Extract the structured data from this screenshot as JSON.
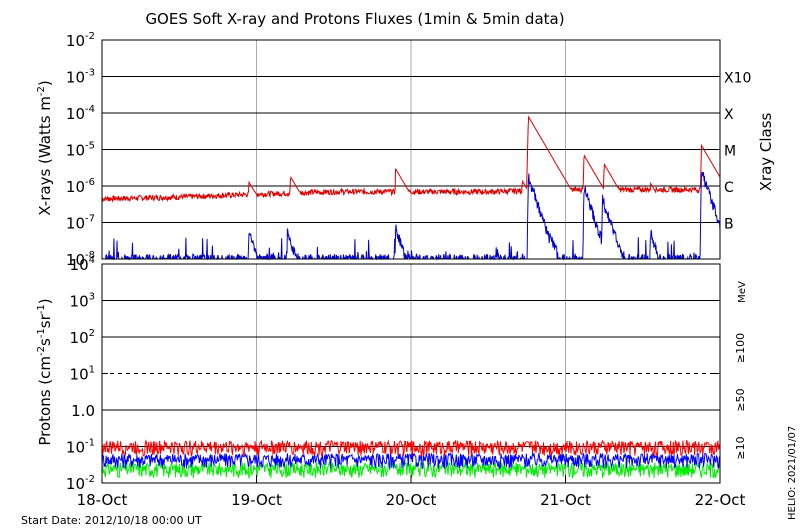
{
  "title": "GOES Soft X-ray and Protons Fluxes   (1min & 5min data)",
  "start_date": "Start Date: 2012/10/18 00:00 UT",
  "credit": "HELIO: 2021/01/07",
  "colors": {
    "xray_long": "#dd0000",
    "xray_short": "#0000cc",
    "p10": "#ff0000",
    "p50": "#0000ff",
    "p100": "#00ee00",
    "grid_day": "#aaaaaa"
  },
  "chart_data": [
    {
      "type": "line",
      "panel": "xray",
      "ylabel": "X-rays (Watts m⁻²)",
      "ylabel_base": "X-rays (Watts m",
      "ylabel_sup": "-2",
      "ylabel_end": ")",
      "yscale": "log",
      "ylim": [
        1e-08,
        0.01
      ],
      "y_ticks": [
        {
          "base": "10",
          "exp": "-8"
        },
        {
          "base": "10",
          "exp": "-7"
        },
        {
          "base": "10",
          "exp": "-6"
        },
        {
          "base": "10",
          "exp": "-5"
        },
        {
          "base": "10",
          "exp": "-4"
        },
        {
          "base": "10",
          "exp": "-3"
        },
        {
          "base": "10",
          "exp": "-2"
        }
      ],
      "xlim": [
        "2012-10-18",
        "2012-10-22"
      ],
      "x_ticks": [
        "18-Oct",
        "19-Oct",
        "20-Oct",
        "21-Oct",
        "22-Oct"
      ],
      "right_axis_label": "Xray Class",
      "classes": [
        {
          "label": "X10",
          "flux": 0.001
        },
        {
          "label": "X",
          "flux": 0.0001
        },
        {
          "label": "M",
          "flux": 1e-05
        },
        {
          "label": "C",
          "flux": 1e-06
        },
        {
          "label": "B",
          "flux": 1e-07
        }
      ],
      "series": [
        {
          "key": "long",
          "baseline_days": [
            0,
            0.5,
            1,
            1.5,
            2,
            2.5,
            3,
            3.5,
            4
          ],
          "baseline": [
            4.5e-07,
            5e-07,
            6e-07,
            7e-07,
            7e-07,
            7e-07,
            8e-07,
            8e-07,
            8e-07
          ],
          "peaks": [
            {
              "day": 0.95,
              "val": 1.3e-06
            },
            {
              "day": 1.22,
              "val": 1.8e-06
            },
            {
              "day": 1.9,
              "val": 3e-06
            },
            {
              "day": 2.72,
              "val": 1.4e-06
            },
            {
              "day": 2.76,
              "val": 8e-05
            },
            {
              "day": 3.12,
              "val": 7e-06
            },
            {
              "day": 3.25,
              "val": 4e-06
            },
            {
              "day": 3.55,
              "val": 1.2e-06
            },
            {
              "day": 3.88,
              "val": 1.3e-05
            }
          ]
        },
        {
          "key": "short",
          "peaks": [
            {
              "day": 0.95,
              "val": 6e-08
            },
            {
              "day": 1.2,
              "val": 6e-08
            },
            {
              "day": 1.9,
              "val": 8e-08
            },
            {
              "day": 2.55,
              "val": 2e-08
            },
            {
              "day": 2.76,
              "val": 2e-06
            },
            {
              "day": 2.9,
              "val": 6e-08
            },
            {
              "day": 3.12,
              "val": 1e-06
            },
            {
              "day": 3.24,
              "val": 5e-07
            },
            {
              "day": 3.55,
              "val": 6e-08
            },
            {
              "day": 3.88,
              "val": 3e-06
            },
            {
              "day": 3.98,
              "val": 6e-08
            }
          ]
        }
      ]
    },
    {
      "type": "line",
      "panel": "protons",
      "ylabel_base": "Protons (cm",
      "ylabel_sup1": "-2",
      "ylabel_mid": "s",
      "ylabel_sup2": "-1",
      "ylabel_mid2": "sr",
      "ylabel_sup3": "-1",
      "ylabel_end": ")",
      "yscale": "log",
      "ylim": [
        0.01,
        10000
      ],
      "y_ticks": [
        {
          "base": "10",
          "exp": "-2"
        },
        {
          "base": "10",
          "exp": "-1"
        },
        {
          "base": "1.0",
          "exp": ""
        },
        {
          "base": "10",
          "exp": "1"
        },
        {
          "base": "10",
          "exp": "2"
        },
        {
          "base": "10",
          "exp": "3"
        },
        {
          "base": "10",
          "exp": "4"
        }
      ],
      "threshold_dashed": 10,
      "unit_label": "MeV",
      "series": [
        {
          "name": "≥100",
          "level": 0.025
        },
        {
          "name": "≥50",
          "level": 0.045
        },
        {
          "name": "≥10",
          "level": 0.1
        }
      ]
    }
  ]
}
